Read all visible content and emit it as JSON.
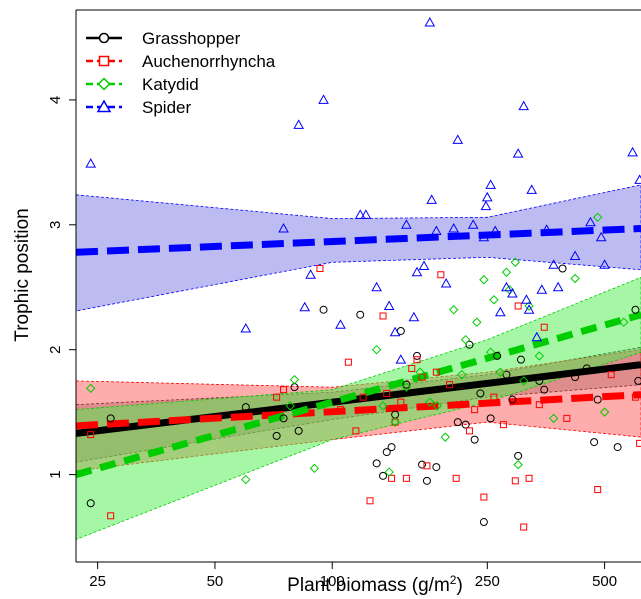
{
  "chart_data": {
    "type": "scatter",
    "title": "",
    "xlabel": "Plant biomass (g/m",
    "xlabel_sup": "2",
    "xlabel_end": ")",
    "ylabel": "Trophic position",
    "x_scale": "log",
    "xlim": [
      22,
      620
    ],
    "ylim": [
      0.3,
      4.72
    ],
    "x_ticks": [
      25,
      50,
      100,
      250,
      500
    ],
    "x_tick_labels": [
      "25",
      "50",
      "100",
      "250",
      "500"
    ],
    "y_ticks": [
      1,
      2,
      3,
      4
    ],
    "y_tick_labels": [
      "1",
      "2",
      "3",
      "4"
    ],
    "grid": false,
    "legend_position": "top-left",
    "series": [
      {
        "name": "Grasshopper",
        "color": "#000000",
        "marker": "circle",
        "line_style": "solid",
        "band_color": "#808080",
        "fit": {
          "x": [
            22,
            620
          ],
          "y": [
            1.33,
            1.88
          ]
        },
        "band": {
          "x": [
            22,
            100,
            250,
            620
          ],
          "upper": [
            1.56,
            1.66,
            1.8,
            2.02
          ],
          "lower": [
            1.1,
            1.44,
            1.62,
            1.72
          ]
        },
        "points": [
          [
            24,
            0.77
          ],
          [
            27,
            1.45
          ],
          [
            60,
            1.54
          ],
          [
            72,
            1.31
          ],
          [
            75,
            1.45
          ],
          [
            80,
            1.7
          ],
          [
            82,
            1.35
          ],
          [
            95,
            2.32
          ],
          [
            118,
            2.28
          ],
          [
            130,
            1.09
          ],
          [
            135,
            0.99
          ],
          [
            138,
            1.18
          ],
          [
            142,
            1.22
          ],
          [
            145,
            1.48
          ],
          [
            150,
            2.15
          ],
          [
            155,
            1.72
          ],
          [
            165,
            1.95
          ],
          [
            170,
            1.08
          ],
          [
            175,
            0.95
          ],
          [
            185,
            1.06
          ],
          [
            210,
            1.42
          ],
          [
            220,
            1.4
          ],
          [
            225,
            2.04
          ],
          [
            232,
            1.28
          ],
          [
            240,
            1.65
          ],
          [
            245,
            0.62
          ],
          [
            255,
            1.45
          ],
          [
            265,
            1.95
          ],
          [
            280,
            1.8
          ],
          [
            290,
            1.6
          ],
          [
            300,
            1.15
          ],
          [
            305,
            1.92
          ],
          [
            340,
            1.75
          ],
          [
            350,
            1.68
          ],
          [
            390,
            2.65
          ],
          [
            420,
            1.78
          ],
          [
            450,
            1.85
          ],
          [
            470,
            1.26
          ],
          [
            480,
            1.6
          ],
          [
            540,
            1.22
          ],
          [
            600,
            2.32
          ],
          [
            610,
            1.75
          ]
        ]
      },
      {
        "name": "Auchenorrhyncha",
        "color": "#ff0000",
        "marker": "square",
        "line_style": "dashed",
        "band_color": "#ff5a5a",
        "fit": {
          "x": [
            22,
            620
          ],
          "y": [
            1.39,
            1.64
          ]
        },
        "band": {
          "x": [
            22,
            100,
            250,
            620
          ],
          "upper": [
            1.75,
            1.7,
            1.82,
            2.0
          ],
          "lower": [
            1.03,
            1.28,
            1.42,
            1.3
          ]
        },
        "points": [
          [
            24,
            1.32
          ],
          [
            27,
            0.67
          ],
          [
            72,
            1.62
          ],
          [
            75,
            1.68
          ],
          [
            93,
            2.65
          ],
          [
            105,
            1.52
          ],
          [
            110,
            1.9
          ],
          [
            115,
            1.35
          ],
          [
            120,
            1.62
          ],
          [
            125,
            0.79
          ],
          [
            135,
            2.27
          ],
          [
            138,
            1.65
          ],
          [
            142,
            0.97
          ],
          [
            145,
            1.42
          ],
          [
            150,
            1.58
          ],
          [
            155,
            0.97
          ],
          [
            160,
            1.85
          ],
          [
            165,
            1.92
          ],
          [
            170,
            1.78
          ],
          [
            175,
            1.07
          ],
          [
            185,
            1.82
          ],
          [
            190,
            2.6
          ],
          [
            200,
            1.72
          ],
          [
            208,
            0.97
          ],
          [
            225,
            1.35
          ],
          [
            232,
            1.52
          ],
          [
            245,
            0.82
          ],
          [
            260,
            1.62
          ],
          [
            275,
            1.4
          ],
          [
            295,
            0.95
          ],
          [
            300,
            2.35
          ],
          [
            310,
            0.58
          ],
          [
            320,
            0.97
          ],
          [
            340,
            1.56
          ],
          [
            350,
            2.18
          ],
          [
            400,
            1.45
          ],
          [
            480,
            0.88
          ],
          [
            520,
            1.8
          ],
          [
            600,
            1.62
          ],
          [
            615,
            1.25
          ]
        ]
      },
      {
        "name": "Katydid",
        "color": "#00cc00",
        "marker": "diamond",
        "line_style": "dashed",
        "band_color": "#4cf04c",
        "fit": {
          "x": [
            22,
            620
          ],
          "y": [
            1.0,
            2.28
          ]
        },
        "band": {
          "x": [
            22,
            100,
            250,
            620
          ],
          "upper": [
            1.52,
            1.68,
            2.08,
            2.58
          ],
          "lower": [
            0.48,
            1.28,
            1.58,
            1.98
          ]
        },
        "points": [
          [
            24,
            1.69
          ],
          [
            60,
            0.96
          ],
          [
            78,
            1.55
          ],
          [
            80,
            1.76
          ],
          [
            90,
            1.05
          ],
          [
            130,
            2.0
          ],
          [
            135,
            1.55
          ],
          [
            140,
            1.02
          ],
          [
            145,
            1.42
          ],
          [
            155,
            1.7
          ],
          [
            168,
            1.82
          ],
          [
            178,
            1.58
          ],
          [
            186,
            1.55
          ],
          [
            195,
            1.3
          ],
          [
            205,
            2.32
          ],
          [
            215,
            1.8
          ],
          [
            220,
            2.08
          ],
          [
            235,
            2.22
          ],
          [
            245,
            2.56
          ],
          [
            255,
            1.98
          ],
          [
            260,
            2.4
          ],
          [
            270,
            1.82
          ],
          [
            280,
            2.62
          ],
          [
            285,
            2.48
          ],
          [
            295,
            2.7
          ],
          [
            300,
            1.08
          ],
          [
            310,
            1.75
          ],
          [
            320,
            2.35
          ],
          [
            340,
            1.95
          ],
          [
            370,
            1.45
          ],
          [
            420,
            2.57
          ],
          [
            480,
            3.06
          ],
          [
            500,
            1.5
          ],
          [
            560,
            2.22
          ]
        ]
      },
      {
        "name": "Spider",
        "color": "#0000ff",
        "marker": "triangle",
        "line_style": "dashed",
        "band_color": "#7a7ae6",
        "fit": {
          "x": [
            22,
            620
          ],
          "y": [
            2.78,
            2.97
          ]
        },
        "band": {
          "x": [
            22,
            100,
            250,
            620
          ],
          "upper": [
            3.24,
            3.05,
            3.06,
            3.32
          ],
          "lower": [
            2.31,
            2.7,
            2.74,
            2.64
          ]
        },
        "points": [
          [
            24,
            3.49
          ],
          [
            60,
            2.17
          ],
          [
            75,
            2.97
          ],
          [
            82,
            3.8
          ],
          [
            85,
            2.34
          ],
          [
            88,
            2.6
          ],
          [
            95,
            4.0
          ],
          [
            105,
            2.2
          ],
          [
            118,
            3.08
          ],
          [
            122,
            3.08
          ],
          [
            130,
            2.5
          ],
          [
            140,
            2.35
          ],
          [
            145,
            2.14
          ],
          [
            150,
            1.92
          ],
          [
            155,
            3.0
          ],
          [
            162,
            2.26
          ],
          [
            165,
            2.62
          ],
          [
            172,
            2.67
          ],
          [
            178,
            4.62
          ],
          [
            180,
            3.2
          ],
          [
            185,
            2.95
          ],
          [
            196,
            2.53
          ],
          [
            205,
            2.97
          ],
          [
            210,
            3.68
          ],
          [
            230,
            3.0
          ],
          [
            245,
            2.9
          ],
          [
            248,
            3.15
          ],
          [
            250,
            3.22
          ],
          [
            255,
            3.32
          ],
          [
            262,
            2.95
          ],
          [
            270,
            2.3
          ],
          [
            280,
            2.5
          ],
          [
            290,
            2.45
          ],
          [
            300,
            3.57
          ],
          [
            310,
            3.95
          ],
          [
            315,
            2.4
          ],
          [
            320,
            2.32
          ],
          [
            325,
            3.28
          ],
          [
            335,
            2.1
          ],
          [
            345,
            2.48
          ],
          [
            355,
            2.96
          ],
          [
            370,
            2.68
          ],
          [
            380,
            2.5
          ],
          [
            420,
            2.75
          ],
          [
            460,
            3.02
          ],
          [
            490,
            2.9
          ],
          [
            500,
            2.68
          ],
          [
            590,
            3.58
          ],
          [
            615,
            3.36
          ]
        ]
      }
    ]
  }
}
